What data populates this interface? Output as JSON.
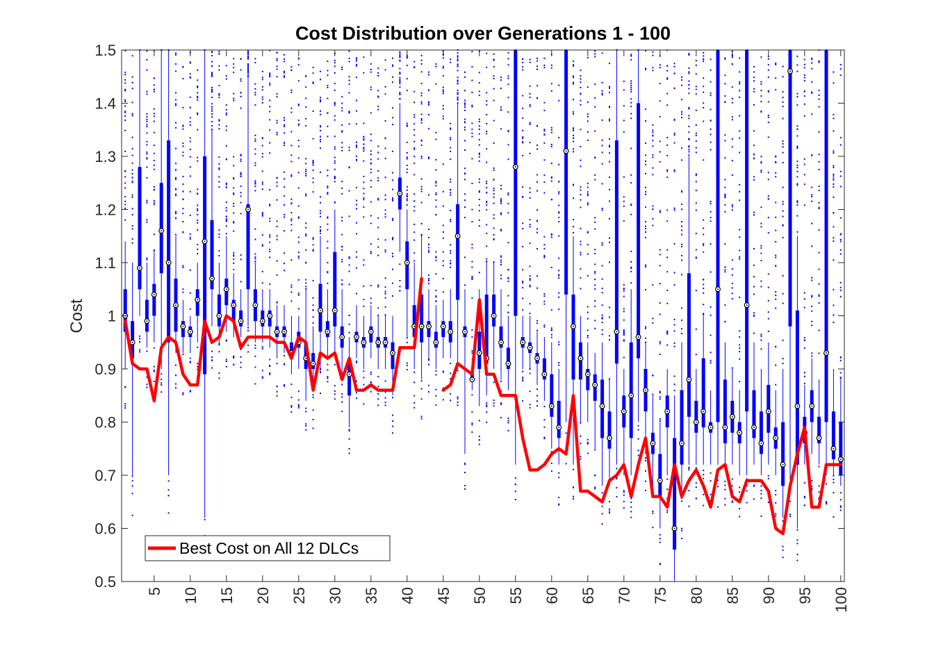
{
  "chart_data": {
    "type": "box",
    "title": "Cost Distribution over Generations 1 - 100",
    "xlabel": "",
    "ylabel": "Cost",
    "xlim": [
      0.5,
      100.5
    ],
    "ylim": [
      0.5,
      1.5
    ],
    "x_ticks": [
      5,
      10,
      15,
      20,
      25,
      30,
      35,
      40,
      45,
      50,
      55,
      60,
      65,
      70,
      75,
      80,
      85,
      90,
      95,
      100
    ],
    "y_ticks": [
      0.5,
      0.6,
      0.7,
      0.8,
      0.9,
      1,
      1.1,
      1.2,
      1.3,
      1.4,
      1.5
    ],
    "y_tick_labels": [
      "0.5",
      "0.6",
      "0.7",
      "0.8",
      "0.9",
      "1",
      "1.1",
      "1.2",
      "1.3",
      "1.4",
      "1.5"
    ],
    "grid": false,
    "legend_position": "bottom-left",
    "colors": {
      "box": "#0000ff",
      "best_line": "#ff0000",
      "axes": "#262626"
    },
    "generations": [
      1,
      2,
      3,
      4,
      5,
      6,
      7,
      8,
      9,
      10,
      11,
      12,
      13,
      14,
      15,
      16,
      17,
      18,
      19,
      20,
      21,
      22,
      23,
      24,
      25,
      26,
      27,
      28,
      29,
      30,
      31,
      32,
      33,
      34,
      35,
      36,
      37,
      38,
      39,
      40,
      41,
      42,
      43,
      44,
      45,
      46,
      47,
      48,
      49,
      50,
      51,
      52,
      53,
      54,
      55,
      56,
      57,
      58,
      59,
      60,
      61,
      62,
      63,
      64,
      65,
      66,
      67,
      68,
      69,
      70,
      71,
      72,
      73,
      74,
      75,
      76,
      77,
      78,
      79,
      80,
      81,
      82,
      83,
      84,
      85,
      86,
      87,
      88,
      89,
      90,
      91,
      92,
      93,
      94,
      95,
      96,
      97,
      98,
      99,
      100
    ],
    "boxes": {
      "median": [
        1.0,
        0.95,
        1.09,
        0.99,
        1.04,
        1.16,
        1.1,
        1.02,
        0.98,
        0.97,
        1.03,
        1.14,
        1.07,
        1.0,
        1.05,
        1.02,
        0.99,
        1.2,
        1.02,
        0.99,
        1.0,
        0.97,
        0.97,
        0.93,
        0.95,
        0.92,
        0.91,
        1.01,
        0.97,
        1.01,
        0.96,
        0.89,
        0.96,
        0.95,
        0.97,
        0.95,
        0.95,
        0.93,
        1.23,
        1.1,
        0.98,
        0.98,
        0.98,
        0.95,
        0.98,
        0.97,
        1.15,
        0.97,
        0.88,
        0.93,
        0.92,
        1.0,
        0.95,
        0.91,
        1.28,
        0.95,
        0.94,
        0.92,
        0.89,
        0.83,
        0.79,
        1.31,
        0.98,
        0.92,
        0.89,
        0.87,
        0.83,
        0.77,
        0.97,
        0.82,
        0.85,
        0.96,
        0.86,
        0.76,
        0.69,
        0.82,
        0.6,
        0.76,
        0.88,
        0.8,
        0.82,
        0.79,
        1.05,
        0.79,
        0.81,
        0.78,
        1.02,
        0.79,
        0.76,
        0.82,
        0.77,
        0.72,
        1.46,
        0.83,
        0.78,
        0.83,
        0.77,
        0.93,
        0.75,
        0.73
      ],
      "q1": [
        0.97,
        0.92,
        1.05,
        0.97,
        1.0,
        1.08,
        0.95,
        0.97,
        0.96,
        0.96,
        1.0,
        0.89,
        1.05,
        0.98,
        1.02,
        0.99,
        0.98,
        1.05,
        0.99,
        0.98,
        0.98,
        0.96,
        0.96,
        0.92,
        0.94,
        0.9,
        0.9,
        0.97,
        0.96,
        0.98,
        0.94,
        0.85,
        0.95,
        0.94,
        0.95,
        0.94,
        0.94,
        0.9,
        1.2,
        1.05,
        0.96,
        0.95,
        0.96,
        0.94,
        0.96,
        0.95,
        1.03,
        0.96,
        0.88,
        0.9,
        0.91,
        0.98,
        0.94,
        0.9,
        1.0,
        0.94,
        0.93,
        0.91,
        0.88,
        0.81,
        0.77,
        1.04,
        0.88,
        0.88,
        0.86,
        0.84,
        0.77,
        0.75,
        0.91,
        0.79,
        0.77,
        0.92,
        0.82,
        0.74,
        0.66,
        0.79,
        0.56,
        0.72,
        0.81,
        0.78,
        0.79,
        0.78,
        0.8,
        0.76,
        0.78,
        0.76,
        0.82,
        0.77,
        0.74,
        0.78,
        0.75,
        0.68,
        0.98,
        0.72,
        0.76,
        0.8,
        0.76,
        0.8,
        0.73,
        0.7
      ],
      "q3": [
        1.05,
        0.99,
        1.28,
        1.03,
        1.06,
        1.25,
        1.33,
        1.07,
        0.99,
        0.98,
        1.05,
        1.3,
        1.18,
        1.04,
        1.07,
        1.03,
        1.01,
        1.21,
        1.05,
        1.01,
        1.01,
        0.98,
        0.98,
        0.95,
        0.97,
        0.95,
        0.93,
        1.06,
        0.99,
        1.12,
        0.98,
        0.91,
        0.97,
        0.96,
        0.98,
        0.96,
        0.96,
        0.95,
        1.26,
        1.14,
        1.02,
        1.04,
        0.99,
        0.97,
        0.99,
        0.99,
        1.21,
        0.98,
        0.89,
        0.97,
        1.04,
        1.04,
        0.98,
        0.94,
        1.5,
        0.96,
        0.95,
        0.93,
        0.92,
        0.89,
        0.84,
        1.5,
        1.04,
        0.95,
        0.9,
        0.89,
        0.88,
        0.82,
        1.33,
        0.85,
        0.95,
        1.4,
        0.9,
        0.78,
        0.74,
        0.85,
        0.77,
        0.86,
        1.08,
        0.84,
        0.92,
        0.8,
        1.5,
        0.88,
        0.84,
        0.8,
        1.5,
        0.86,
        0.82,
        0.87,
        0.79,
        0.8,
        1.5,
        1.01,
        0.81,
        0.86,
        0.81,
        1.5,
        0.82,
        0.8
      ],
      "whisker_lo": [
        0.9,
        0.7,
        1.0,
        0.94,
        0.95,
        0.9,
        0.7,
        0.93,
        0.93,
        0.93,
        0.95,
        0.62,
        0.98,
        0.95,
        0.97,
        0.96,
        0.96,
        0.98,
        0.95,
        0.95,
        0.94,
        0.92,
        0.93,
        0.89,
        0.9,
        0.84,
        0.86,
        0.9,
        0.92,
        0.92,
        0.88,
        0.79,
        0.92,
        0.9,
        0.92,
        0.9,
        0.9,
        0.85,
        1.12,
        0.96,
        0.9,
        0.88,
        0.92,
        0.9,
        0.92,
        0.92,
        0.9,
        0.74,
        0.86,
        0.83,
        0.85,
        0.9,
        0.88,
        0.86,
        0.72,
        0.9,
        0.9,
        0.87,
        0.84,
        0.75,
        0.72,
        0.8,
        0.72,
        0.8,
        0.8,
        0.75,
        0.68,
        0.68,
        0.72,
        0.7,
        0.7,
        0.8,
        0.74,
        0.68,
        0.6,
        0.7,
        0.5,
        0.66,
        0.72,
        0.72,
        0.72,
        0.72,
        0.72,
        0.72,
        0.72,
        0.7,
        0.7,
        0.72,
        0.7,
        0.72,
        0.7,
        0.62,
        0.68,
        0.6,
        0.72,
        0.74,
        0.72,
        0.7,
        0.7,
        0.68
      ],
      "whisker_hi": [
        1.14,
        1.1,
        1.5,
        1.1,
        1.12,
        1.5,
        1.5,
        1.15,
        1.03,
        1.0,
        1.1,
        1.5,
        1.35,
        1.1,
        1.15,
        1.08,
        1.05,
        1.45,
        1.1,
        1.05,
        1.05,
        1.02,
        1.02,
        1.0,
        1.0,
        1.05,
        0.98,
        1.15,
        1.05,
        1.2,
        1.05,
        0.96,
        1.02,
        1.0,
        1.02,
        1.0,
        1.0,
        1.0,
        1.4,
        1.2,
        1.1,
        1.15,
        1.05,
        1.02,
        1.03,
        1.05,
        1.4,
        1.05,
        0.92,
        1.05,
        1.1,
        1.1,
        1.05,
        1.0,
        1.5,
        1.0,
        1.0,
        0.97,
        0.96,
        0.95,
        0.9,
        1.5,
        1.15,
        1.0,
        0.95,
        0.93,
        0.95,
        0.88,
        1.5,
        0.9,
        1.05,
        1.5,
        0.95,
        0.85,
        0.8,
        0.9,
        0.85,
        0.95,
        1.3,
        0.9,
        1.0,
        0.86,
        1.5,
        0.95,
        0.9,
        0.86,
        1.5,
        0.95,
        0.9,
        0.95,
        0.86,
        0.9,
        1.5,
        1.15,
        0.87,
        0.92,
        0.88,
        1.5,
        0.9,
        0.88
      ]
    },
    "series": [
      {
        "name": "Best Cost on All 12 DLCs",
        "x": [
          1,
          2,
          3,
          4,
          5,
          6,
          7,
          8,
          9,
          10,
          11,
          12,
          13,
          14,
          15,
          16,
          17,
          18,
          19,
          20,
          21,
          22,
          23,
          24,
          25,
          26,
          27,
          28,
          29,
          30,
          31,
          32,
          33,
          34,
          35,
          36,
          37,
          38,
          39,
          40,
          41,
          42,
          null,
          45,
          46,
          47,
          48,
          49,
          50,
          51,
          52,
          53,
          54,
          55,
          56,
          57,
          58,
          59,
          60,
          61,
          62,
          63,
          64,
          65,
          66,
          67,
          68,
          69,
          70,
          71,
          72,
          73,
          74,
          75,
          76,
          77,
          78,
          79,
          80,
          81,
          82,
          83,
          84,
          85,
          86,
          87,
          88,
          89,
          90,
          91,
          92,
          93,
          94,
          95,
          96,
          97,
          98,
          99,
          100
        ],
        "y": [
          0.99,
          0.91,
          0.9,
          0.9,
          0.84,
          0.94,
          0.96,
          0.95,
          0.89,
          0.87,
          0.87,
          0.99,
          0.95,
          0.96,
          1.0,
          0.99,
          0.94,
          0.96,
          0.96,
          0.96,
          0.96,
          0.95,
          0.95,
          0.92,
          0.96,
          0.95,
          0.86,
          0.93,
          0.92,
          0.93,
          0.88,
          0.92,
          0.86,
          0.86,
          0.87,
          0.86,
          0.86,
          0.86,
          0.94,
          0.94,
          0.94,
          1.07,
          null,
          0.86,
          0.87,
          0.91,
          0.9,
          0.89,
          1.03,
          0.89,
          0.89,
          0.85,
          0.85,
          0.85,
          0.77,
          0.71,
          0.71,
          0.72,
          0.74,
          0.75,
          0.74,
          0.85,
          0.67,
          0.67,
          0.66,
          0.65,
          0.69,
          0.7,
          0.72,
          0.66,
          0.72,
          0.77,
          0.66,
          0.66,
          0.64,
          0.72,
          0.66,
          0.69,
          0.71,
          0.68,
          0.64,
          0.71,
          0.72,
          0.66,
          0.65,
          0.69,
          0.69,
          0.69,
          0.67,
          0.6,
          0.59,
          0.68,
          0.74,
          0.79,
          0.64,
          0.64,
          0.72,
          0.72,
          0.72
        ]
      }
    ]
  }
}
